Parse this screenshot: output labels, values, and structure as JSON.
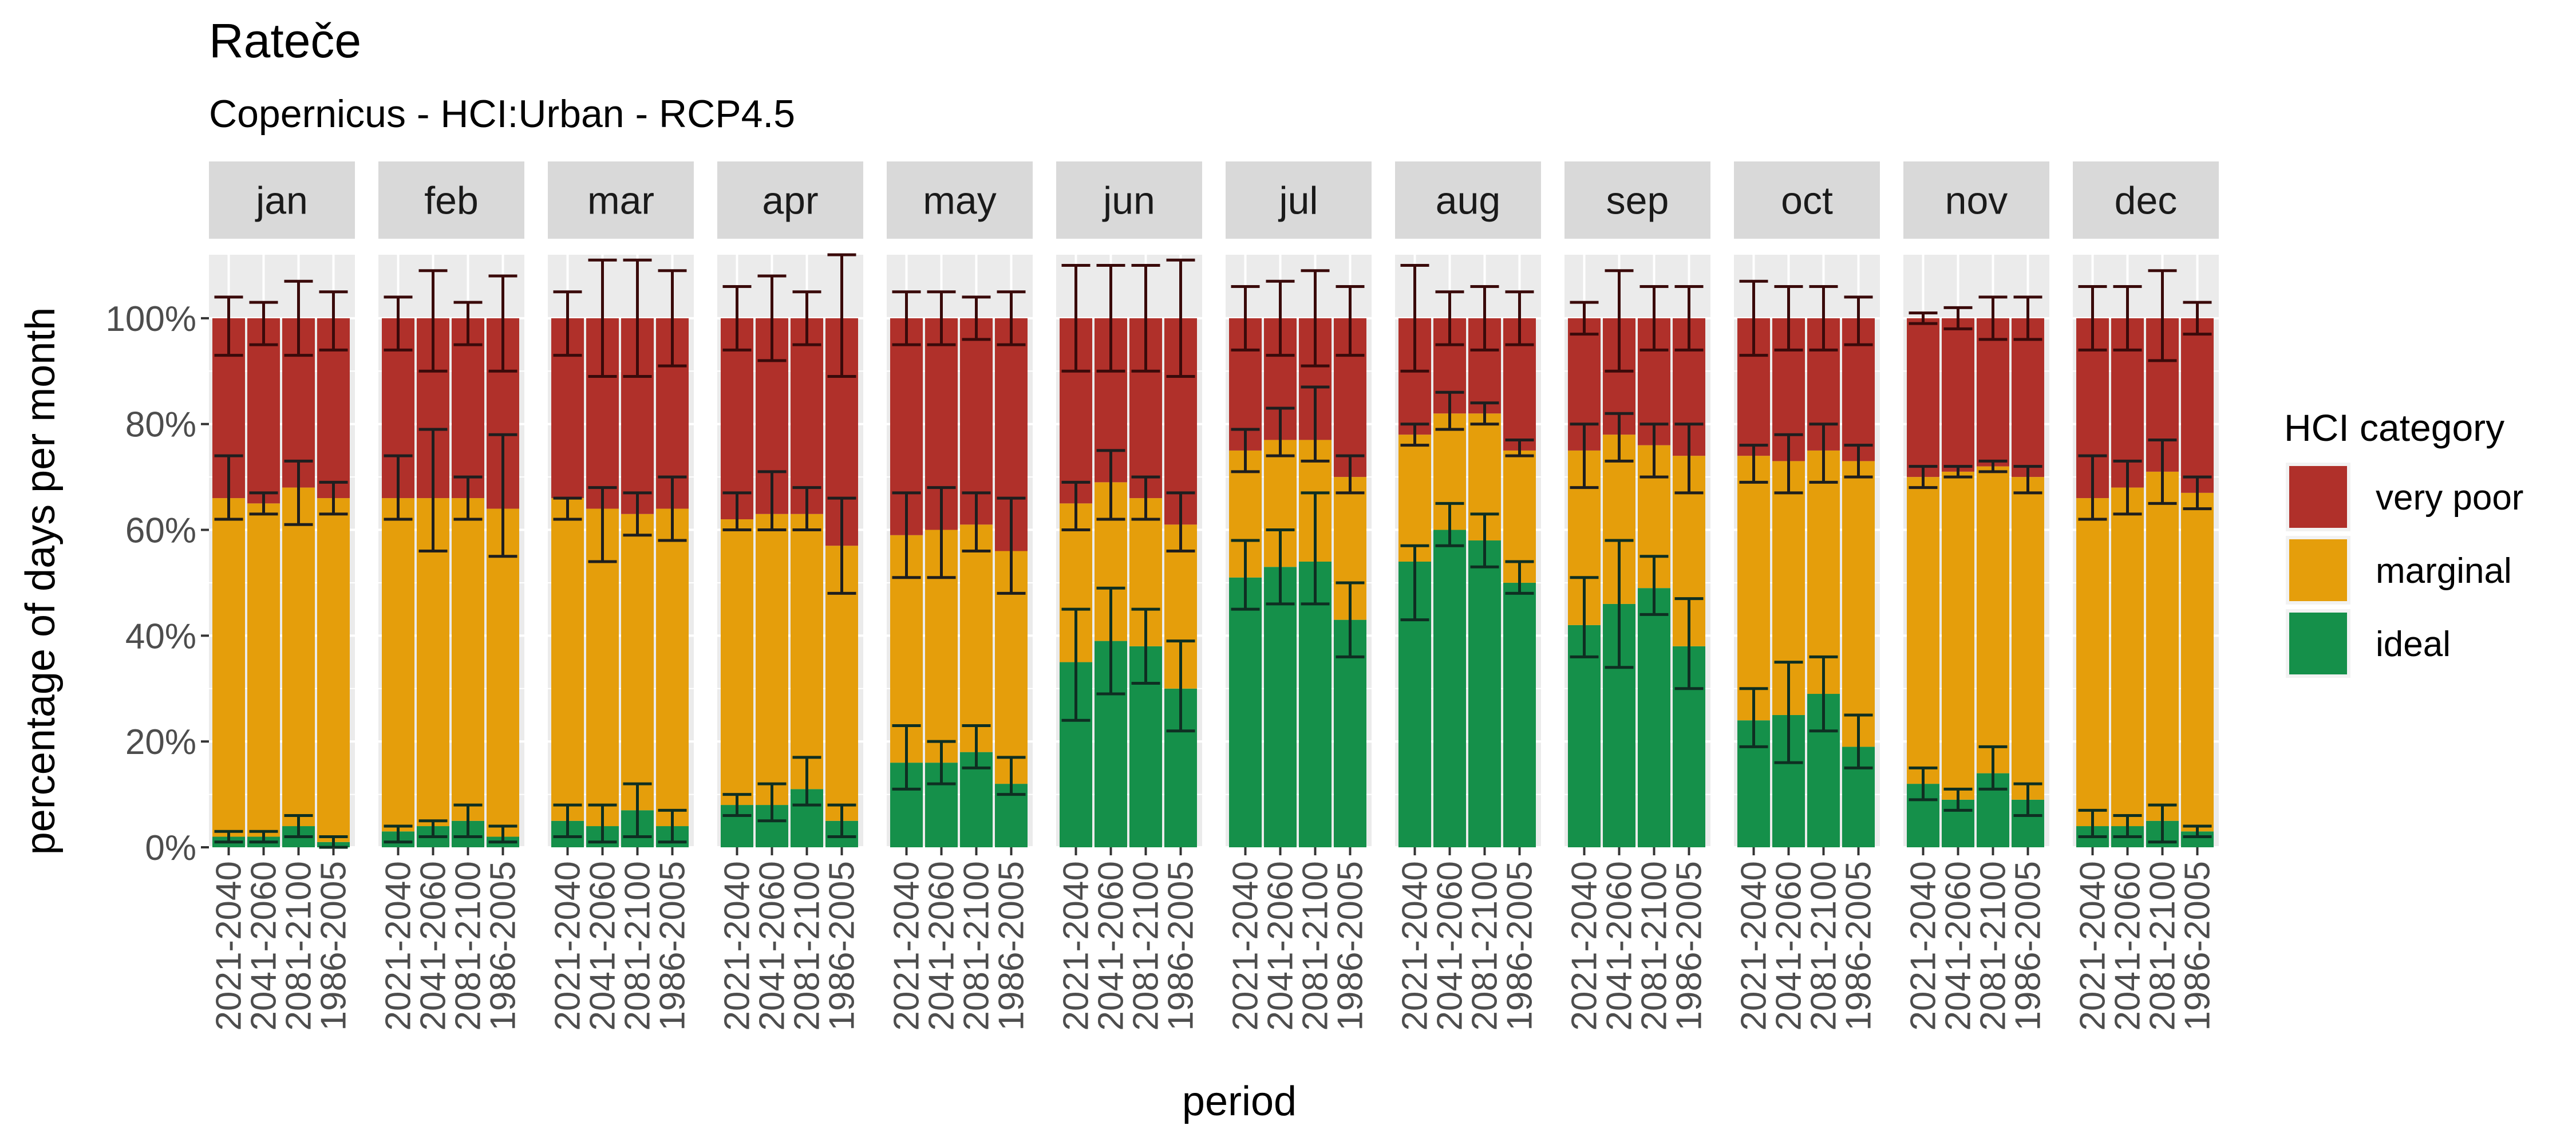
{
  "chart_data": {
    "type": "bar",
    "title": "Rateče",
    "subtitle": "Copernicus - HCI:Urban - RCP4.5",
    "xlabel": "period",
    "ylabel": "percentage of days per month",
    "ylim": [
      0,
      1.12
    ],
    "y_ticks": [
      "0%",
      "20%",
      "40%",
      "60%",
      "80%",
      "100%"
    ],
    "y_tick_values": [
      0,
      0.2,
      0.4,
      0.6,
      0.8,
      1.0
    ],
    "grid": true,
    "legend_position": "right",
    "legend": {
      "title": "HCI category",
      "items": [
        {
          "name": "very poor",
          "color": "#B0302A"
        },
        {
          "name": "marginal",
          "color": "#E59E0B"
        },
        {
          "name": "ideal",
          "color": "#15904A"
        }
      ]
    },
    "periods": [
      "2021-2040",
      "2041-2060",
      "2081-2100",
      "1986-2005"
    ],
    "facets": [
      {
        "month": "jan",
        "ideal": [
          0.02,
          0.02,
          0.04,
          0.01
        ],
        "marginal_top": [
          0.66,
          0.65,
          0.68,
          0.66
        ],
        "err_ideal": [
          [
            0.01,
            0.03
          ],
          [
            0.01,
            0.03
          ],
          [
            0.02,
            0.06
          ],
          [
            0.0,
            0.02
          ]
        ],
        "err_marginal": [
          [
            0.62,
            0.74
          ],
          [
            0.63,
            0.67
          ],
          [
            0.61,
            0.73
          ],
          [
            0.63,
            0.69
          ]
        ],
        "err_top": [
          [
            0.93,
            1.04
          ],
          [
            0.95,
            1.03
          ],
          [
            0.93,
            1.07
          ],
          [
            0.94,
            1.05
          ]
        ]
      },
      {
        "month": "feb",
        "ideal": [
          0.03,
          0.04,
          0.05,
          0.02
        ],
        "marginal_top": [
          0.66,
          0.66,
          0.66,
          0.64
        ],
        "err_ideal": [
          [
            0.01,
            0.04
          ],
          [
            0.02,
            0.05
          ],
          [
            0.02,
            0.08
          ],
          [
            0.01,
            0.04
          ]
        ],
        "err_marginal": [
          [
            0.62,
            0.74
          ],
          [
            0.56,
            0.79
          ],
          [
            0.62,
            0.7
          ],
          [
            0.55,
            0.78
          ]
        ],
        "err_top": [
          [
            0.94,
            1.04
          ],
          [
            0.9,
            1.09
          ],
          [
            0.95,
            1.03
          ],
          [
            0.9,
            1.08
          ]
        ]
      },
      {
        "month": "mar",
        "ideal": [
          0.05,
          0.04,
          0.07,
          0.04
        ],
        "marginal_top": [
          0.66,
          0.64,
          0.63,
          0.64
        ],
        "err_ideal": [
          [
            0.02,
            0.08
          ],
          [
            0.01,
            0.08
          ],
          [
            0.02,
            0.12
          ],
          [
            0.01,
            0.07
          ]
        ],
        "err_marginal": [
          [
            0.62,
            0.66
          ],
          [
            0.54,
            0.68
          ],
          [
            0.59,
            0.67
          ],
          [
            0.58,
            0.7
          ]
        ],
        "err_top": [
          [
            0.93,
            1.05
          ],
          [
            0.89,
            1.11
          ],
          [
            0.89,
            1.11
          ],
          [
            0.91,
            1.09
          ]
        ]
      },
      {
        "month": "apr",
        "ideal": [
          0.08,
          0.08,
          0.11,
          0.05
        ],
        "marginal_top": [
          0.62,
          0.63,
          0.63,
          0.57
        ],
        "err_ideal": [
          [
            0.06,
            0.1
          ],
          [
            0.05,
            0.12
          ],
          [
            0.08,
            0.17
          ],
          [
            0.02,
            0.08
          ]
        ],
        "err_marginal": [
          [
            0.6,
            0.67
          ],
          [
            0.6,
            0.71
          ],
          [
            0.6,
            0.68
          ],
          [
            0.48,
            0.66
          ]
        ],
        "err_top": [
          [
            0.94,
            1.06
          ],
          [
            0.92,
            1.08
          ],
          [
            0.95,
            1.05
          ],
          [
            0.89,
            1.12
          ]
        ]
      },
      {
        "month": "may",
        "ideal": [
          0.16,
          0.16,
          0.18,
          0.12
        ],
        "marginal_top": [
          0.59,
          0.6,
          0.61,
          0.56
        ],
        "err_ideal": [
          [
            0.11,
            0.23
          ],
          [
            0.12,
            0.2
          ],
          [
            0.15,
            0.23
          ],
          [
            0.1,
            0.17
          ]
        ],
        "err_marginal": [
          [
            0.51,
            0.67
          ],
          [
            0.51,
            0.68
          ],
          [
            0.56,
            0.67
          ],
          [
            0.48,
            0.66
          ]
        ],
        "err_top": [
          [
            0.95,
            1.05
          ],
          [
            0.95,
            1.05
          ],
          [
            0.96,
            1.04
          ],
          [
            0.95,
            1.05
          ]
        ]
      },
      {
        "month": "jun",
        "ideal": [
          0.35,
          0.39,
          0.38,
          0.3
        ],
        "marginal_top": [
          0.65,
          0.69,
          0.66,
          0.61
        ],
        "err_ideal": [
          [
            0.24,
            0.45
          ],
          [
            0.29,
            0.49
          ],
          [
            0.31,
            0.45
          ],
          [
            0.22,
            0.39
          ]
        ],
        "err_marginal": [
          [
            0.6,
            0.69
          ],
          [
            0.62,
            0.75
          ],
          [
            0.62,
            0.7
          ],
          [
            0.56,
            0.67
          ]
        ],
        "err_top": [
          [
            0.9,
            1.1
          ],
          [
            0.9,
            1.1
          ],
          [
            0.9,
            1.1
          ],
          [
            0.89,
            1.11
          ]
        ]
      },
      {
        "month": "jul",
        "ideal": [
          0.51,
          0.53,
          0.54,
          0.43
        ],
        "marginal_top": [
          0.75,
          0.77,
          0.77,
          0.7
        ],
        "err_ideal": [
          [
            0.45,
            0.58
          ],
          [
            0.46,
            0.6
          ],
          [
            0.46,
            0.67
          ],
          [
            0.36,
            0.5
          ]
        ],
        "err_marginal": [
          [
            0.71,
            0.79
          ],
          [
            0.74,
            0.83
          ],
          [
            0.73,
            0.87
          ],
          [
            0.67,
            0.74
          ]
        ],
        "err_top": [
          [
            0.94,
            1.06
          ],
          [
            0.93,
            1.07
          ],
          [
            0.91,
            1.09
          ],
          [
            0.93,
            1.06
          ]
        ]
      },
      {
        "month": "aug",
        "ideal": [
          0.54,
          0.6,
          0.58,
          0.5
        ],
        "marginal_top": [
          0.78,
          0.82,
          0.82,
          0.75
        ],
        "err_ideal": [
          [
            0.43,
            0.57
          ],
          [
            0.57,
            0.65
          ],
          [
            0.53,
            0.63
          ],
          [
            0.48,
            0.54
          ]
        ],
        "err_marginal": [
          [
            0.76,
            0.8
          ],
          [
            0.79,
            0.86
          ],
          [
            0.8,
            0.84
          ],
          [
            0.74,
            0.77
          ]
        ],
        "err_top": [
          [
            0.9,
            1.1
          ],
          [
            0.95,
            1.05
          ],
          [
            0.94,
            1.06
          ],
          [
            0.95,
            1.05
          ]
        ]
      },
      {
        "month": "sep",
        "ideal": [
          0.42,
          0.46,
          0.49,
          0.38
        ],
        "marginal_top": [
          0.75,
          0.78,
          0.76,
          0.74
        ],
        "err_ideal": [
          [
            0.36,
            0.51
          ],
          [
            0.34,
            0.58
          ],
          [
            0.44,
            0.55
          ],
          [
            0.3,
            0.47
          ]
        ],
        "err_marginal": [
          [
            0.68,
            0.8
          ],
          [
            0.73,
            0.82
          ],
          [
            0.7,
            0.8
          ],
          [
            0.67,
            0.8
          ]
        ],
        "err_top": [
          [
            0.97,
            1.03
          ],
          [
            0.9,
            1.09
          ],
          [
            0.94,
            1.06
          ],
          [
            0.94,
            1.06
          ]
        ]
      },
      {
        "month": "oct",
        "ideal": [
          0.24,
          0.25,
          0.29,
          0.19
        ],
        "marginal_top": [
          0.74,
          0.73,
          0.75,
          0.73
        ],
        "err_ideal": [
          [
            0.19,
            0.3
          ],
          [
            0.16,
            0.35
          ],
          [
            0.22,
            0.36
          ],
          [
            0.15,
            0.25
          ]
        ],
        "err_marginal": [
          [
            0.69,
            0.76
          ],
          [
            0.67,
            0.78
          ],
          [
            0.69,
            0.8
          ],
          [
            0.7,
            0.76
          ]
        ],
        "err_top": [
          [
            0.93,
            1.07
          ],
          [
            0.94,
            1.06
          ],
          [
            0.94,
            1.06
          ],
          [
            0.95,
            1.04
          ]
        ]
      },
      {
        "month": "nov",
        "ideal": [
          0.12,
          0.09,
          0.14,
          0.09
        ],
        "marginal_top": [
          0.7,
          0.71,
          0.72,
          0.7
        ],
        "err_ideal": [
          [
            0.09,
            0.15
          ],
          [
            0.07,
            0.11
          ],
          [
            0.11,
            0.19
          ],
          [
            0.06,
            0.12
          ]
        ],
        "err_marginal": [
          [
            0.68,
            0.72
          ],
          [
            0.7,
            0.72
          ],
          [
            0.71,
            0.73
          ],
          [
            0.67,
            0.72
          ]
        ],
        "err_top": [
          [
            0.99,
            1.01
          ],
          [
            0.98,
            1.02
          ],
          [
            0.96,
            1.04
          ],
          [
            0.96,
            1.04
          ]
        ]
      },
      {
        "month": "dec",
        "ideal": [
          0.04,
          0.04,
          0.05,
          0.03
        ],
        "marginal_top": [
          0.66,
          0.68,
          0.71,
          0.67
        ],
        "err_ideal": [
          [
            0.02,
            0.07
          ],
          [
            0.02,
            0.06
          ],
          [
            0.01,
            0.08
          ],
          [
            0.02,
            0.04
          ]
        ],
        "err_marginal": [
          [
            0.62,
            0.74
          ],
          [
            0.63,
            0.73
          ],
          [
            0.65,
            0.77
          ],
          [
            0.64,
            0.7
          ]
        ],
        "err_top": [
          [
            0.94,
            1.06
          ],
          [
            0.94,
            1.06
          ],
          [
            0.92,
            1.09
          ],
          [
            0.97,
            1.03
          ]
        ]
      }
    ]
  }
}
